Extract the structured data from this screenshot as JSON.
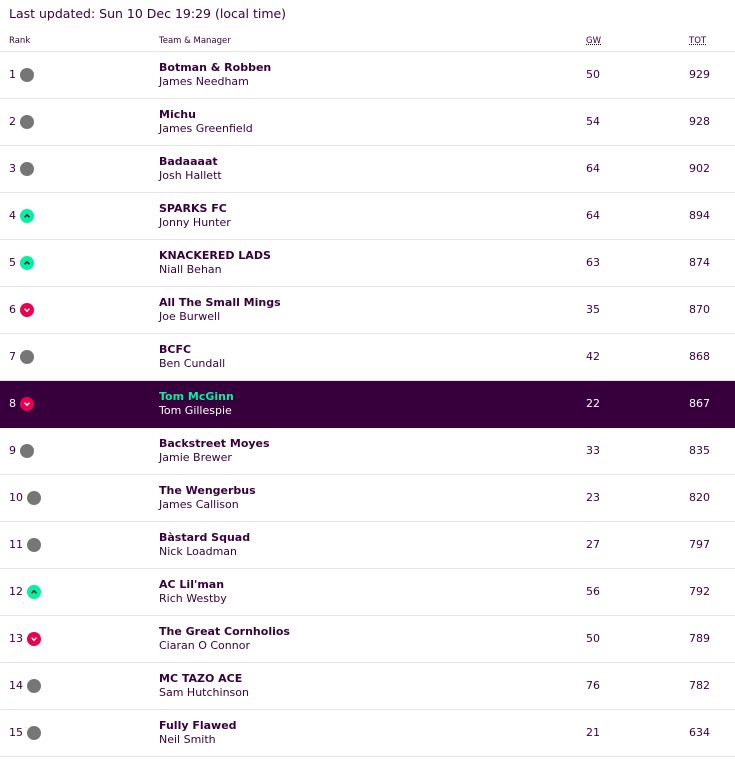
{
  "last_updated": "Last updated: Sun 10 Dec 19:29 (local time)",
  "headers": {
    "rank": "Rank",
    "team": "Team & Manager",
    "gw": "GW",
    "tot": "TOT"
  },
  "colors": {
    "primary": "#37003c",
    "up": "#05f0a0",
    "down": "#e90052",
    "same": "#767676"
  },
  "rows": [
    {
      "rank": "1",
      "move": "same",
      "team": "Botman & Robben",
      "manager": "James Needham",
      "gw": "50",
      "tot": "929"
    },
    {
      "rank": "2",
      "move": "same",
      "team": "Michu",
      "manager": "James Greenfield",
      "gw": "54",
      "tot": "928"
    },
    {
      "rank": "3",
      "move": "same",
      "team": "Badaaaat",
      "manager": "Josh Hallett",
      "gw": "64",
      "tot": "902"
    },
    {
      "rank": "4",
      "move": "up",
      "team": "SPARKS FC",
      "manager": "Jonny Hunter",
      "gw": "64",
      "tot": "894"
    },
    {
      "rank": "5",
      "move": "up",
      "team": "KNACKERED LADS",
      "manager": "Niall Behan",
      "gw": "63",
      "tot": "874"
    },
    {
      "rank": "6",
      "move": "down",
      "team": "All The Small Mings",
      "manager": "Joe Burwell",
      "gw": "35",
      "tot": "870"
    },
    {
      "rank": "7",
      "move": "same",
      "team": "BCFC",
      "manager": "Ben Cundall",
      "gw": "42",
      "tot": "868"
    },
    {
      "rank": "8",
      "move": "down",
      "team": "Tom McGinn",
      "manager": "Tom Gillespie",
      "gw": "22",
      "tot": "867",
      "highlight": true
    },
    {
      "rank": "9",
      "move": "same",
      "team": "Backstreet Moyes",
      "manager": "Jamie Brewer",
      "gw": "33",
      "tot": "835"
    },
    {
      "rank": "10",
      "move": "same",
      "team": "The Wengerbus",
      "manager": "James Callison",
      "gw": "23",
      "tot": "820"
    },
    {
      "rank": "11",
      "move": "same",
      "team": "Bàstard Squad",
      "manager": "Nick Loadman",
      "gw": "27",
      "tot": "797"
    },
    {
      "rank": "12",
      "move": "up",
      "team": "AC Lil'man",
      "manager": "Rich Westby",
      "gw": "56",
      "tot": "792"
    },
    {
      "rank": "13",
      "move": "down",
      "team": "The Great Cornholios",
      "manager": "Ciaran O Connor",
      "gw": "50",
      "tot": "789"
    },
    {
      "rank": "14",
      "move": "same",
      "team": "MC TAZO ACE",
      "manager": "Sam Hutchinson",
      "gw": "76",
      "tot": "782"
    },
    {
      "rank": "15",
      "move": "same",
      "team": "Fully Flawed",
      "manager": "Neil Smith",
      "gw": "21",
      "tot": "634"
    }
  ]
}
